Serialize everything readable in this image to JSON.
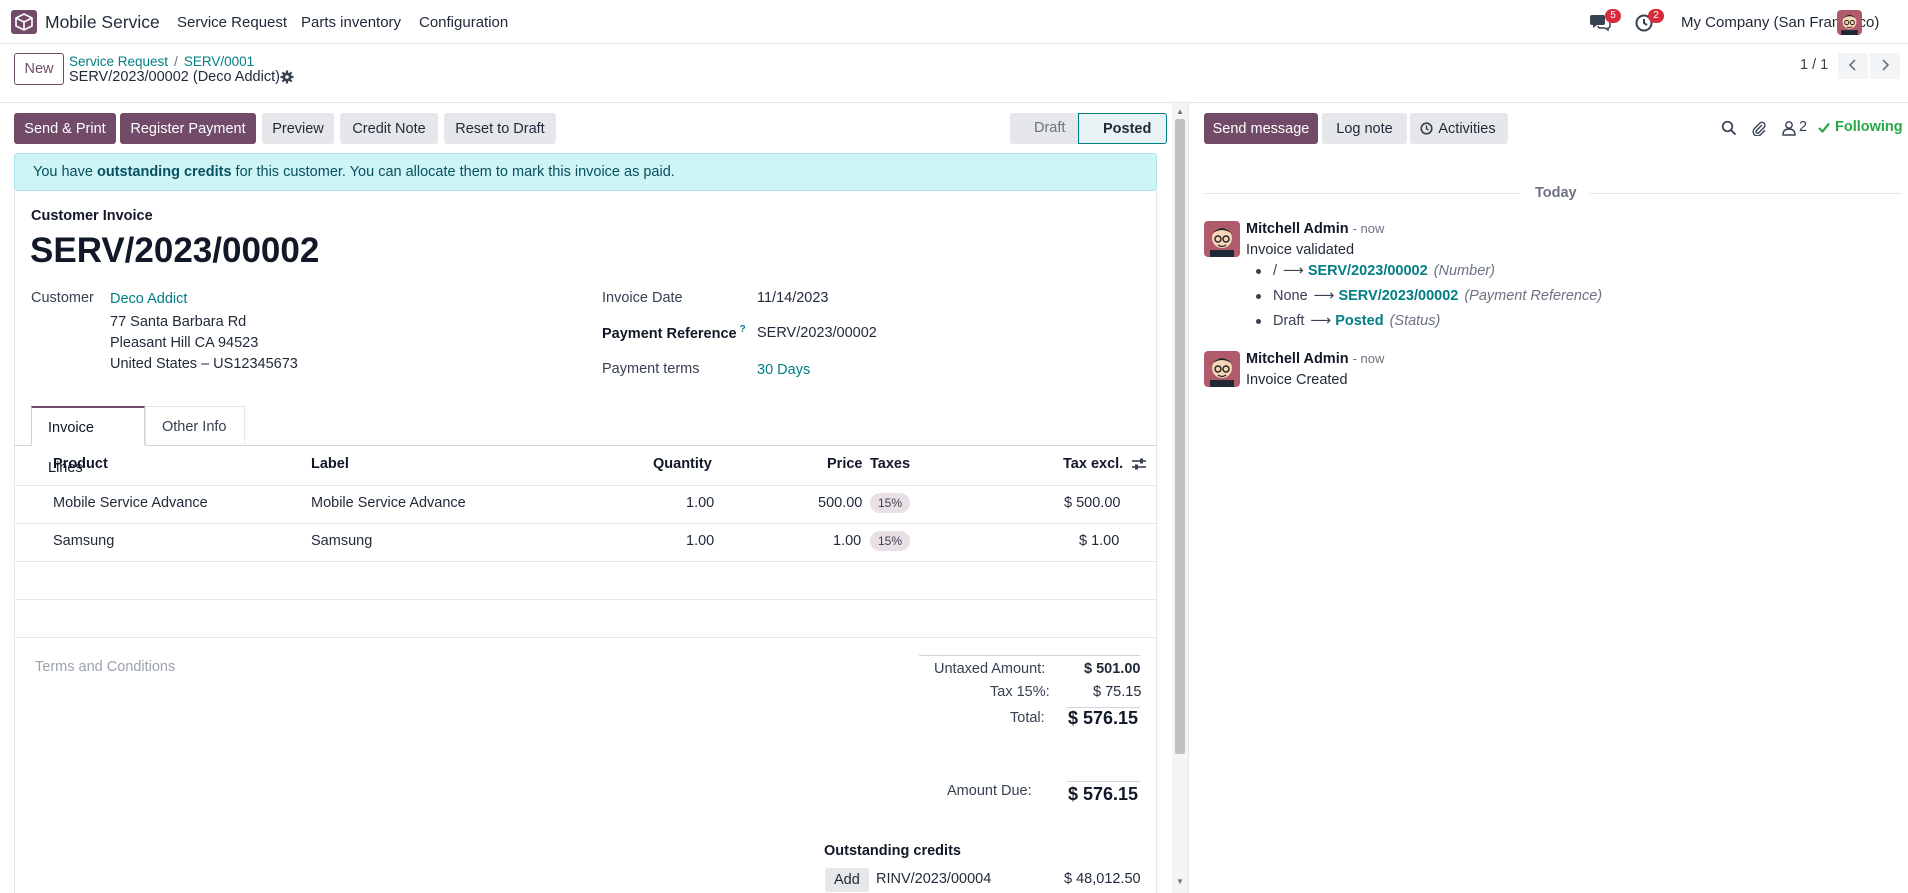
{
  "navbar": {
    "app_name": "Mobile Service",
    "menu": [
      "Service Request",
      "Parts inventory",
      "Configuration"
    ],
    "messages_badge": "5",
    "activities_badge": "2",
    "company": "My Company (San Francisco)"
  },
  "control": {
    "new_label": "New",
    "breadcrumb": [
      "Service Request",
      "SERV/0001"
    ],
    "record_title": "SERV/2023/00002 (Deco Addict)",
    "pager": "1 / 1"
  },
  "actions": {
    "send_print": "Send & Print",
    "register_payment": "Register Payment",
    "preview": "Preview",
    "credit_note": "Credit Note",
    "reset_to_draft": "Reset to Draft"
  },
  "status": {
    "draft": "Draft",
    "posted": "Posted",
    "current": "Posted"
  },
  "alert": {
    "prefix": "You have ",
    "bold": "outstanding credits",
    "suffix": " for this customer. You can allocate them to mark this invoice as paid."
  },
  "invoice": {
    "type_label": "Customer Invoice",
    "number": "SERV/2023/00002",
    "customer_label": "Customer",
    "customer_name": "Deco Addict",
    "address": [
      "77 Santa Barbara Rd",
      "Pleasant Hill CA 94523",
      "United States – US12345673"
    ],
    "invoice_date_label": "Invoice Date",
    "invoice_date": "11/14/2023",
    "payment_ref_label": "Payment Reference",
    "payment_ref_help": "?",
    "payment_ref": "SERV/2023/00002",
    "payment_terms_label": "Payment terms",
    "payment_terms": "30 Days"
  },
  "tabs": [
    "Invoice Lines",
    "Other Info"
  ],
  "lines": {
    "headers": {
      "product": "Product",
      "label": "Label",
      "quantity": "Quantity",
      "price": "Price",
      "taxes": "Taxes",
      "tax_excl": "Tax excl."
    },
    "rows": [
      {
        "product": "Mobile Service Advance",
        "label": "Mobile Service Advance",
        "quantity": "1.00",
        "price": "500.00",
        "tax": "15%",
        "subtotal": "$ 500.00"
      },
      {
        "product": "Samsung",
        "label": "Samsung",
        "quantity": "1.00",
        "price": "1.00",
        "tax": "15%",
        "subtotal": "$ 1.00"
      }
    ]
  },
  "terms_placeholder": "Terms and Conditions",
  "totals": {
    "untaxed_label": "Untaxed Amount:",
    "untaxed": "$ 501.00",
    "tax_label": "Tax 15%:",
    "tax": "$ 75.15",
    "total_label": "Total:",
    "total": "$ 576.15",
    "due_label": "Amount Due:",
    "due": "$ 576.15"
  },
  "outstanding": {
    "title": "Outstanding credits",
    "add_label": "Add",
    "ref": "RINV/2023/00004",
    "amount": "$ 48,012.50"
  },
  "chatter": {
    "send_message": "Send message",
    "log_note": "Log note",
    "activities": "Activities",
    "followers": "2",
    "following": "Following",
    "today": "Today",
    "messages": [
      {
        "author": "Mitchell Admin",
        "time": "- now",
        "body": "Invoice validated",
        "tracking": [
          {
            "old": "/",
            "new": "SERV/2023/00002",
            "field": "(Number)"
          },
          {
            "old": "None",
            "new": "SERV/2023/00002",
            "field": "(Payment Reference)"
          },
          {
            "old": "Draft",
            "new": "Posted",
            "field": "(Status)"
          }
        ]
      },
      {
        "author": "Mitchell Admin",
        "time": "- now",
        "body": "Invoice Created"
      }
    ]
  },
  "icons": {
    "app_logo": "box-icon",
    "messages": "chat-bubbles-icon",
    "activities": "clock-icon",
    "gear": "gear-icon",
    "pager_prev": "chevron-left-icon",
    "pager_next": "chevron-right-icon",
    "columns": "sliders-icon",
    "search": "search-icon",
    "attachment": "paperclip-icon",
    "followers": "user-icon",
    "following": "check-icon"
  },
  "colors": {
    "brand": "#714b67",
    "link": "#017e84",
    "alert_bg": "#cff4f5",
    "following": "#28a745"
  }
}
